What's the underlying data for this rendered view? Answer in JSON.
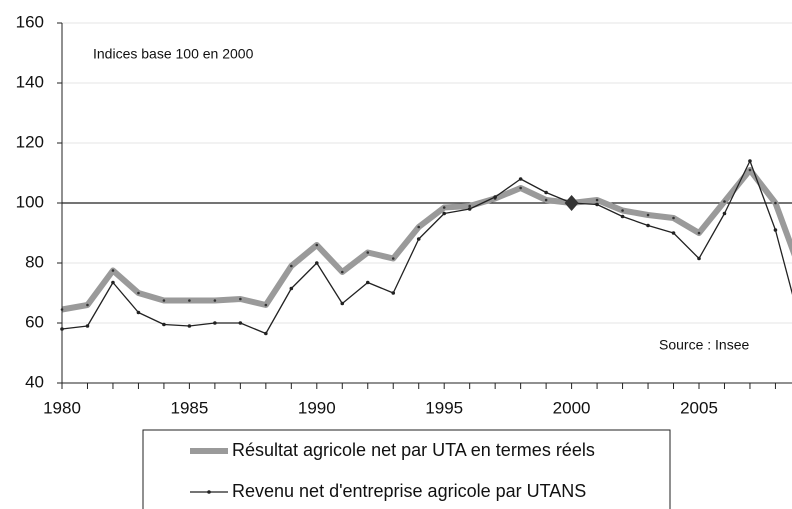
{
  "chart_data": {
    "type": "line",
    "annotations": [
      "Indices base 100 en 2000",
      "Source : Insee"
    ],
    "x": [
      1980,
      1981,
      1982,
      1983,
      1984,
      1985,
      1986,
      1987,
      1988,
      1989,
      1990,
      1991,
      1992,
      1993,
      1994,
      1995,
      1996,
      1997,
      1998,
      1999,
      2000,
      2001,
      2002,
      2003,
      2004,
      2005,
      2006,
      2007,
      2008,
      2009
    ],
    "series": [
      {
        "name": "Résultat agricole net par UTA en termes réels",
        "color": "#9a9a9a",
        "values": [
          64.5,
          66,
          77.5,
          70,
          67.5,
          67.5,
          67.5,
          68,
          66,
          79,
          86,
          77,
          83.5,
          81.5,
          92,
          98.5,
          99,
          101.5,
          105,
          101,
          100,
          101,
          97.5,
          96,
          95,
          90,
          100.5,
          111,
          100,
          77
        ]
      },
      {
        "name": "Revenu net d'entreprise agricole par UTANS",
        "color": "#222222",
        "values": [
          58,
          59,
          73.5,
          63.5,
          59.5,
          59,
          60,
          60,
          56.5,
          71.5,
          80,
          66.5,
          73.5,
          70,
          88,
          96.5,
          98,
          102,
          108,
          103.5,
          100,
          99.5,
          95.5,
          92.5,
          90,
          81.5,
          96.5,
          114,
          91,
          59
        ]
      }
    ],
    "xlim": [
      1980,
      2008.65
    ],
    "xticks": [
      1980,
      1985,
      1990,
      1995,
      2000,
      2005
    ],
    "ylim": [
      40,
      160
    ],
    "yticks": [
      40,
      60,
      80,
      100,
      120,
      140,
      160
    ],
    "reference_line": 100,
    "highlight_x": 2000,
    "grid": true
  }
}
